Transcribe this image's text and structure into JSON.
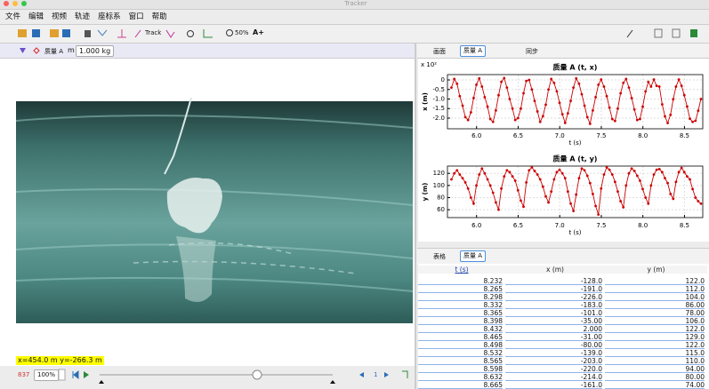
{
  "window_title": "Tracker",
  "menu": [
    "文件",
    "编辑",
    "视频",
    "轨迹",
    "座标系",
    "窗口",
    "帮助"
  ],
  "toolbar": {
    "track": "Track",
    "zoom": "50%",
    "font": "A+"
  },
  "track_panel": {
    "track_name": "质量 A",
    "mass_label": "m",
    "mass_value": "1.000 kg"
  },
  "video": {
    "readout": "x=454.0 m  y=-266.3 m",
    "frame": "837",
    "rate": "100%",
    "step": "1"
  },
  "plot_toolbar": {
    "view": "画面",
    "track": "质量 A",
    "sync": "同步"
  },
  "chart_data": [
    {
      "type": "line",
      "title": "质量 A (t, x)",
      "x_label": "t (s)",
      "y_label": "x (m)",
      "y_scale_label": "x 10²",
      "grid": true,
      "x": [
        5.698,
        5.732,
        5.765,
        5.798,
        5.832,
        5.865,
        5.898,
        5.932,
        5.965,
        5.998,
        6.032,
        6.065,
        6.098,
        6.132,
        6.165,
        6.198,
        6.232,
        6.265,
        6.298,
        6.332,
        6.365,
        6.398,
        6.432,
        6.465,
        6.498,
        6.532,
        6.565,
        6.598,
        6.632,
        6.665,
        6.698,
        6.732,
        6.765,
        6.798,
        6.832,
        6.865,
        6.898,
        6.932,
        6.965,
        6.998,
        7.032,
        7.065,
        7.098,
        7.132,
        7.165,
        7.198,
        7.232,
        7.265,
        7.298,
        7.332,
        7.365,
        7.398,
        7.432,
        7.465,
        7.498,
        7.532,
        7.565,
        7.598,
        7.632,
        7.665,
        7.698,
        7.732,
        7.765,
        7.798,
        7.832,
        7.865,
        7.898,
        7.932,
        7.965,
        7.998,
        8.032,
        8.065,
        8.098,
        8.132,
        8.165,
        8.198,
        8.232,
        8.265,
        8.298,
        8.332,
        8.365,
        8.398,
        8.432,
        8.465,
        8.498,
        8.532,
        8.565,
        8.598,
        8.632,
        8.665,
        8.698
      ],
      "series": [
        {
          "color": "#cc0000",
          "values": [
            -0.4,
            0.05,
            -0.2,
            -0.85,
            -1.35,
            -1.95,
            -2.1,
            -1.7,
            -0.95,
            -0.25,
            0.08,
            -0.35,
            -0.9,
            -1.4,
            -2.05,
            -2.2,
            -1.6,
            -0.8,
            -0.1,
            0.1,
            -0.4,
            -1.0,
            -1.5,
            -2.1,
            -2.0,
            -1.5,
            -0.7,
            -0.05,
            0.0,
            -0.5,
            -1.1,
            -1.65,
            -2.2,
            -1.9,
            -1.3,
            -0.5,
            0.05,
            -0.15,
            -0.6,
            -1.2,
            -1.8,
            -2.25,
            -1.75,
            -1.1,
            -0.4,
            0.08,
            -0.2,
            -0.75,
            -1.35,
            -1.95,
            -2.3,
            -1.6,
            -0.9,
            -0.25,
            0.02,
            -0.35,
            -0.85,
            -1.45,
            -2.05,
            -2.15,
            -1.5,
            -0.7,
            -0.15,
            0.05,
            -0.4,
            -0.95,
            -1.55,
            -2.1,
            -2.05,
            -1.4,
            -0.6,
            -0.1,
            -0.35,
            0.02,
            -0.31,
            -0.35,
            -1.28,
            -1.91,
            -2.26,
            -1.83,
            -1.01,
            -0.35,
            0.02,
            -0.31,
            -0.8,
            -1.39,
            -2.03,
            -2.2,
            -2.14,
            -1.61,
            -1.0
          ]
        }
      ],
      "xlim": [
        5.65,
        8.72
      ],
      "xticks": [
        {
          "value": 6,
          "label": "6.0"
        },
        6.5,
        {
          "value": 7,
          "label": "7.0"
        },
        7.5,
        {
          "value": 8,
          "label": "8.0"
        },
        8.5
      ],
      "ylim": [
        -2.56,
        0.28
      ],
      "yticks": [
        0,
        -0.5,
        {
          "value": -1,
          "label": "-1.0"
        },
        -1.5,
        {
          "value": -2,
          "label": "-2.0"
        }
      ]
    },
    {
      "type": "line",
      "title": "质量 A (t, y)",
      "x_label": "t (s)",
      "y_label": "y (m)",
      "grid": true,
      "x": [
        5.698,
        5.732,
        5.765,
        5.798,
        5.832,
        5.865,
        5.898,
        5.932,
        5.965,
        5.998,
        6.032,
        6.065,
        6.098,
        6.132,
        6.165,
        6.198,
        6.232,
        6.265,
        6.298,
        6.332,
        6.365,
        6.398,
        6.432,
        6.465,
        6.498,
        6.532,
        6.565,
        6.598,
        6.632,
        6.665,
        6.698,
        6.732,
        6.765,
        6.798,
        6.832,
        6.865,
        6.898,
        6.932,
        6.965,
        6.998,
        7.032,
        7.065,
        7.098,
        7.132,
        7.165,
        7.198,
        7.232,
        7.265,
        7.298,
        7.332,
        7.365,
        7.398,
        7.432,
        7.465,
        7.498,
        7.532,
        7.565,
        7.598,
        7.632,
        7.665,
        7.698,
        7.732,
        7.765,
        7.798,
        7.832,
        7.865,
        7.898,
        7.932,
        7.965,
        7.998,
        8.032,
        8.065,
        8.098,
        8.132,
        8.165,
        8.198,
        8.232,
        8.265,
        8.298,
        8.332,
        8.365,
        8.398,
        8.432,
        8.465,
        8.498,
        8.532,
        8.565,
        8.598,
        8.632,
        8.665,
        8.698
      ],
      "series": [
        {
          "color": "#cc0000",
          "values": [
            110,
            120,
            125,
            118,
            112,
            105,
            95,
            80,
            70,
            100,
            118,
            128,
            120,
            110,
            100,
            88,
            72,
            60,
            95,
            115,
            125,
            122,
            115,
            108,
            92,
            75,
            65,
            105,
            125,
            130,
            124,
            118,
            110,
            98,
            82,
            72,
            90,
            110,
            122,
            126,
            120,
            112,
            90,
            70,
            58,
            85,
            112,
            128,
            125,
            116,
            104,
            86,
            66,
            52,
            95,
            118,
            130,
            126,
            118,
            106,
            90,
            74,
            64,
            100,
            120,
            128,
            124,
            116,
            108,
            94,
            80,
            70,
            100,
            118,
            126,
            127,
            122,
            112,
            104,
            86,
            78,
            106,
            122,
            129,
            122,
            115,
            110,
            94,
            80,
            74,
            70
          ]
        }
      ],
      "xlim": [
        5.65,
        8.72
      ],
      "xticks": [
        {
          "value": 6,
          "label": "6.0"
        },
        6.5,
        {
          "value": 7,
          "label": "7.0"
        },
        7.5,
        {
          "value": 8,
          "label": "8.0"
        },
        8.5
      ],
      "ylim": [
        47,
        132
      ],
      "yticks": [
        60,
        80,
        100,
        120
      ]
    }
  ],
  "table_toolbar": {
    "view": "表格",
    "track": "质量 A"
  },
  "table": {
    "columns": [
      "t (s)",
      "x (m)",
      "y (m)"
    ],
    "rows": [
      [
        "8.232",
        "-128.0",
        "122.0"
      ],
      [
        "8.265",
        "-191.0",
        "112.0"
      ],
      [
        "8.298",
        "-226.0",
        "104.0"
      ],
      [
        "8.332",
        "-183.0",
        "86.00"
      ],
      [
        "8.365",
        "-101.0",
        "78.00"
      ],
      [
        "8.398",
        "-35.00",
        "106.0"
      ],
      [
        "8.432",
        "2.000",
        "122.0"
      ],
      [
        "8.465",
        "-31.00",
        "129.0"
      ],
      [
        "8.498",
        "-80.00",
        "122.0"
      ],
      [
        "8.532",
        "-139.0",
        "115.0"
      ],
      [
        "8.565",
        "-203.0",
        "110.0"
      ],
      [
        "8.598",
        "-220.0",
        "94.00"
      ],
      [
        "8.632",
        "-214.0",
        "80.00"
      ],
      [
        "8.665",
        "-161.0",
        "74.00"
      ]
    ]
  }
}
